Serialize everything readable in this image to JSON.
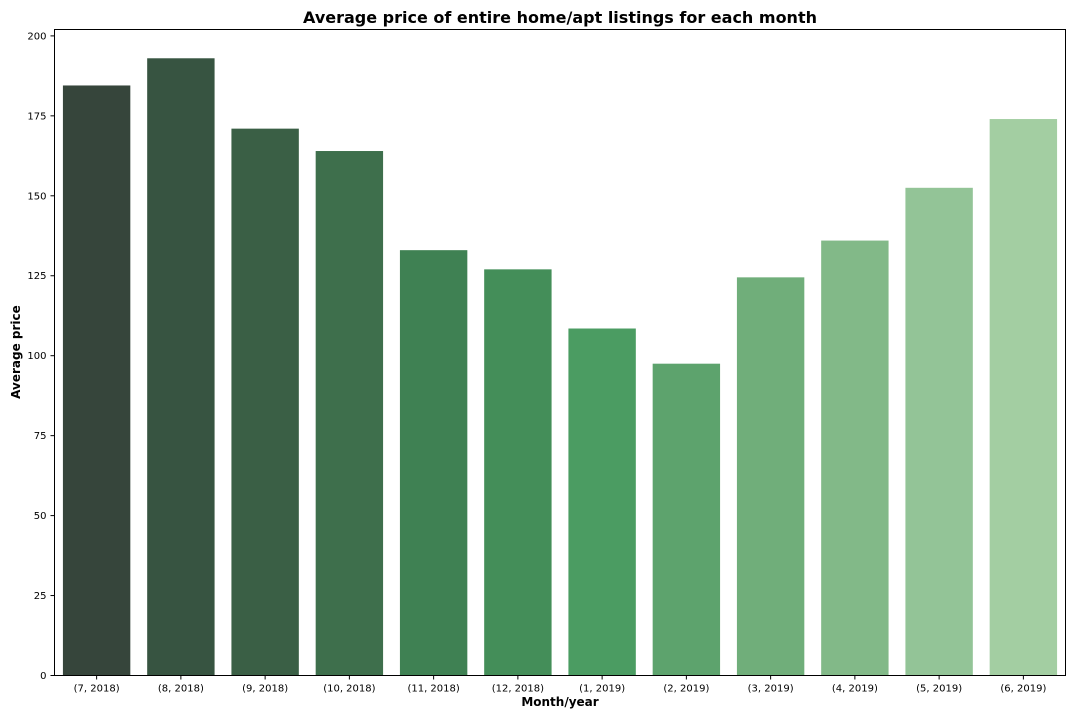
{
  "chart_data": {
    "type": "bar",
    "title": "Average price of entire home/apt listings for each month",
    "xlabel": "Month/year",
    "ylabel": "Average price",
    "ylim": [
      0,
      202
    ],
    "yticks": [
      0,
      25,
      50,
      75,
      100,
      125,
      150,
      175,
      200
    ],
    "grid": false,
    "legend": "none",
    "categories": [
      "(7, 2018)",
      "(8, 2018)",
      "(9, 2018)",
      "(10, 2018)",
      "(11, 2018)",
      "(12, 2018)",
      "(1, 2019)",
      "(2, 2019)",
      "(3, 2019)",
      "(4, 2019)",
      "(5, 2019)",
      "(6, 2019)"
    ],
    "values": [
      184.5,
      193,
      171,
      164,
      133,
      127,
      108.5,
      97.5,
      124.5,
      136,
      152.5,
      174
    ],
    "colors": [
      "#36453b",
      "#375441",
      "#3a5f45",
      "#3e6f4c",
      "#3f8153",
      "#448e59",
      "#4b9c62",
      "#5da36d",
      "#70ae7a",
      "#82b988",
      "#93c497",
      "#a3cea2"
    ]
  }
}
